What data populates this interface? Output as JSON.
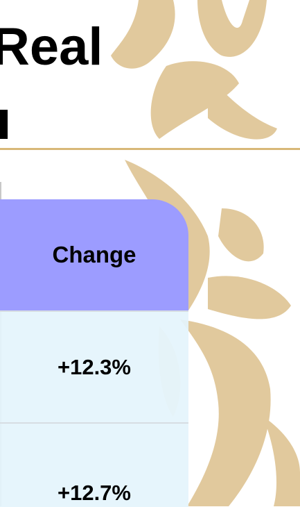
{
  "title": "Real",
  "table": {
    "header": [
      "Change"
    ],
    "rows": [
      [
        "+12.3%"
      ],
      [
        "+12.7%"
      ]
    ]
  }
}
